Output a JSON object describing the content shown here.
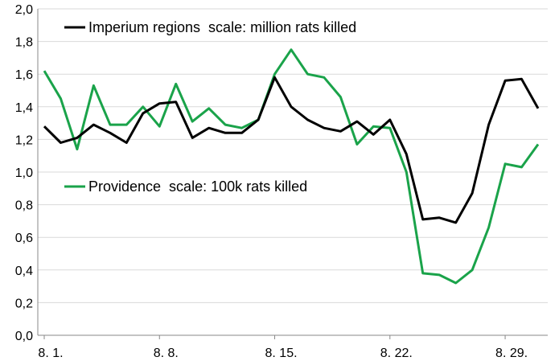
{
  "chart_data": {
    "type": "line",
    "title": "",
    "xlabel": "",
    "ylabel": "",
    "ylim": [
      0,
      2.0
    ],
    "y_ticks": [
      "0,0",
      "0,2",
      "0,4",
      "0,6",
      "0,8",
      "1,0",
      "1,2",
      "1,4",
      "1,6",
      "1,8",
      "2,0"
    ],
    "y_tick_values": [
      0,
      0.2,
      0.4,
      0.6,
      0.8,
      1.0,
      1.2,
      1.4,
      1.6,
      1.8,
      2.0
    ],
    "x_tick_labels": [
      "8. 1.",
      "8. 8.",
      "8. 15.",
      "8. 22.",
      "8. 29."
    ],
    "x_tick_days": [
      1,
      8,
      15,
      22,
      29
    ],
    "x": [
      1,
      2,
      3,
      4,
      5,
      6,
      7,
      8,
      9,
      10,
      11,
      12,
      13,
      14,
      15,
      16,
      17,
      18,
      19,
      20,
      21,
      22,
      23,
      24,
      25,
      26,
      27,
      28,
      29,
      30,
      31
    ],
    "grid": "horizontal",
    "legend_position": "inside-top-left",
    "series": [
      {
        "name": "Imperium regions  scale: million rats killed",
        "color": "#000000",
        "values": [
          1.28,
          1.18,
          1.21,
          1.29,
          1.24,
          1.18,
          1.36,
          1.42,
          1.43,
          1.21,
          1.27,
          1.24,
          1.24,
          1.32,
          1.58,
          1.4,
          1.32,
          1.27,
          1.25,
          1.31,
          1.23,
          1.32,
          1.11,
          0.71,
          0.72,
          0.69,
          0.87,
          1.29,
          1.56,
          1.57,
          1.39
        ]
      },
      {
        "name": "Providence  scale: 100k rats killed",
        "color": "#1aa34a",
        "values": [
          1.62,
          1.45,
          1.14,
          1.53,
          1.29,
          1.29,
          1.4,
          1.28,
          1.54,
          1.31,
          1.39,
          1.29,
          1.27,
          1.32,
          1.6,
          1.75,
          1.6,
          1.58,
          1.46,
          1.17,
          1.28,
          1.27,
          1.0,
          0.38,
          0.37,
          0.32,
          0.4,
          0.66,
          1.05,
          1.03,
          1.17
        ]
      }
    ]
  }
}
